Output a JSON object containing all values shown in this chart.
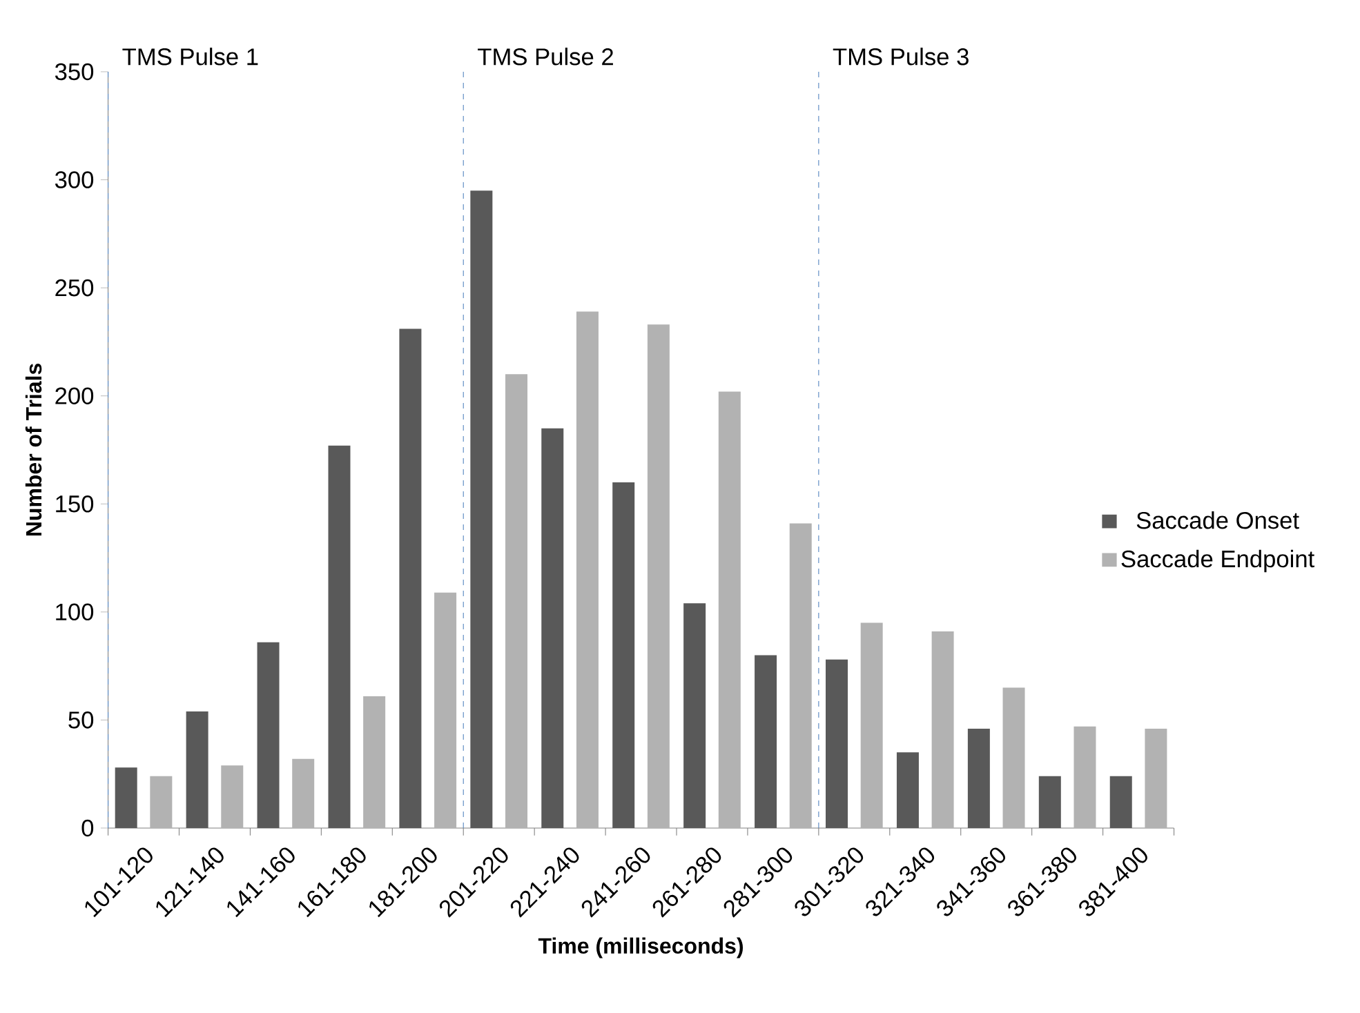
{
  "chart_data": {
    "type": "bar",
    "xlabel": "Time (milliseconds)",
    "ylabel": "Number of Trials",
    "categories": [
      "101-120",
      "121-140",
      "141-160",
      "161-180",
      "181-200",
      "201-220",
      "221-240",
      "241-260",
      "261-280",
      "281-300",
      "301-320",
      "321-340",
      "341-360",
      "361-380",
      "381-400"
    ],
    "series": [
      {
        "name": "Saccade Onset",
        "color": "#595959",
        "values": [
          28,
          54,
          86,
          177,
          231,
          295,
          185,
          160,
          104,
          80,
          78,
          35,
          46,
          24,
          24
        ]
      },
      {
        "name": "Saccade Endpoint",
        "color": "#b2b2b2",
        "values": [
          24,
          29,
          32,
          61,
          109,
          210,
          239,
          233,
          202,
          141,
          95,
          91,
          65,
          47,
          46
        ]
      }
    ],
    "ylim": [
      0,
      350
    ],
    "yticks": [
      0,
      50,
      100,
      150,
      200,
      250,
      300,
      350
    ],
    "annotations": [
      "TMS Pulse 1",
      "TMS Pulse 2",
      "TMS Pulse 3"
    ],
    "legend": "right",
    "grid": false
  }
}
